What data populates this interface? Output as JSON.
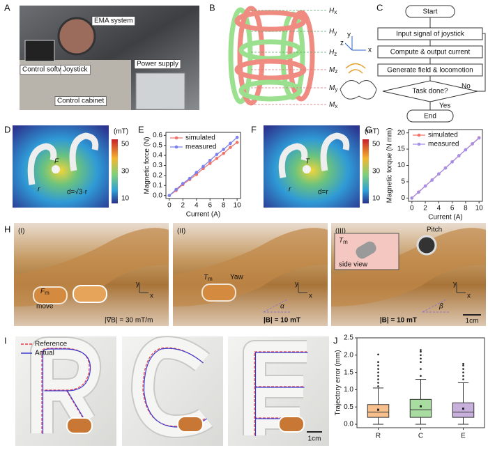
{
  "panel_labels": [
    "A",
    "B",
    "C",
    "D",
    "E",
    "F",
    "G",
    "H",
    "I",
    "J"
  ],
  "panel_a": {
    "labels": [
      "EMA system",
      "Control software",
      "Joystick",
      "Power supply",
      "Control cabinet"
    ]
  },
  "panel_b": {
    "labels": [
      {
        "symbol": "H",
        "subscript": "x"
      },
      {
        "symbol": "H",
        "subscript": "y"
      },
      {
        "symbol": "H",
        "subscript": "z"
      },
      {
        "symbol": "M",
        "subscript": "z"
      },
      {
        "symbol": "M",
        "subscript": "y"
      },
      {
        "symbol": "M",
        "subscript": "x"
      }
    ],
    "axes": [
      "x",
      "y",
      "z"
    ]
  },
  "panel_c": {
    "steps": [
      "Start",
      "Input signal of joystick",
      "Compute & output current",
      "Generate field & locomotion",
      "Task done?",
      "End"
    ],
    "yes": "Yes",
    "no": "No"
  },
  "panel_d": {
    "unit": "(mT)",
    "colorbar_ticks": [
      50,
      30,
      10
    ],
    "force": "F",
    "radius": "r",
    "distance": "d=√3·r"
  },
  "panel_f": {
    "unit": "(mT)",
    "colorbar_ticks": [
      50,
      30,
      10
    ],
    "torque": "T",
    "radius": "r",
    "distance": "d=r"
  },
  "panel_h": {
    "stages": [
      "(I)",
      "(II)",
      "(III)"
    ],
    "force": {
      "symbol": "F",
      "subscript": "m"
    },
    "move": "move",
    "gradient": "|∇B| = 30 mT/m",
    "torque": {
      "symbol": "T",
      "subscript": "m"
    },
    "yaw": "Yaw",
    "field_2": "|B| = 10 mT",
    "alpha": "α",
    "pitch": "Pitch",
    "side_view": "side view",
    "field_3": "|B| = 10 mT",
    "beta": "β",
    "axes": [
      "y",
      "x"
    ],
    "scale": "1cm"
  },
  "panel_i": {
    "legend": [
      "Reference",
      "Actual"
    ],
    "scale": "1cm"
  },
  "chart_data": [
    {
      "type": "line",
      "xlabel": "Current (A)",
      "ylabel": "Magnetic force (N)",
      "x": [
        0,
        1,
        2,
        3,
        4,
        5,
        6,
        7,
        8,
        9,
        10
      ],
      "series": [
        {
          "name": "simulated",
          "color": "#f0746a",
          "values": [
            0,
            0.05,
            0.11,
            0.16,
            0.21,
            0.27,
            0.32,
            0.37,
            0.42,
            0.48,
            0.53
          ]
        },
        {
          "name": "measured",
          "color": "#7b80ee",
          "values": [
            0,
            0.06,
            0.12,
            0.17,
            0.23,
            0.29,
            0.35,
            0.41,
            0.46,
            0.52,
            0.58
          ]
        }
      ],
      "xlim": [
        -0.5,
        10.5
      ],
      "xticks": [
        0,
        2,
        4,
        6,
        8,
        10
      ],
      "ylim": [
        -0.03,
        0.63
      ],
      "yticks": [
        {
          "value": 0,
          "label": "0.0"
        },
        {
          "value": 0.1,
          "label": "0.1"
        },
        {
          "value": 0.2,
          "label": "0.2"
        },
        {
          "value": 0.3,
          "label": "0.3"
        },
        {
          "value": 0.4,
          "label": "0.4"
        },
        {
          "value": 0.5,
          "label": "0.5"
        },
        {
          "value": 0.6,
          "label": "0.6"
        }
      ],
      "legend": "upper-left"
    },
    {
      "type": "line",
      "xlabel": "Current (A)",
      "ylabel": "Magnetic torque (N mm)",
      "x": [
        0,
        1,
        2,
        3,
        4,
        5,
        6,
        7,
        8,
        9,
        10
      ],
      "series": [
        {
          "name": "simulated",
          "color": "#f0746a",
          "values": [
            0,
            1.85,
            3.7,
            5.55,
            7.4,
            9.25,
            11.1,
            12.95,
            14.8,
            16.65,
            18.5
          ]
        },
        {
          "name": "measured",
          "color": "#a48ee6",
          "values": [
            0,
            1.8,
            3.7,
            5.5,
            7.4,
            9.2,
            11.1,
            13.0,
            14.8,
            16.6,
            18.4
          ]
        }
      ],
      "xlim": [
        -0.5,
        10.5
      ],
      "xticks": [
        0,
        2,
        4,
        6,
        8,
        10
      ],
      "ylim": [
        -1,
        21
      ],
      "yticks": [
        0,
        5,
        10,
        15,
        20
      ],
      "legend": "upper-left"
    },
    {
      "type": "box",
      "ylabel": "Trajectory error (mm)",
      "categories": [
        "R",
        "C",
        "E"
      ],
      "colors": [
        "#f6bf8c",
        "#a9dca1",
        "#c8b0dd"
      ],
      "boxes": [
        {
          "min": 0.0,
          "q1": 0.2,
          "median": 0.35,
          "q3": 0.57,
          "max": 1.05,
          "mean": 0.42,
          "outliers": [
            1.1,
            1.2,
            1.3,
            1.4,
            1.5,
            1.6,
            1.7,
            1.8,
            2.02
          ]
        },
        {
          "min": 0.0,
          "q1": 0.2,
          "median": 0.42,
          "q3": 0.72,
          "max": 1.3,
          "mean": 0.52,
          "outliers": [
            1.4,
            1.6,
            1.8,
            1.9,
            2.0,
            2.1,
            2.15
          ]
        },
        {
          "min": 0.0,
          "q1": 0.2,
          "median": 0.35,
          "q3": 0.62,
          "max": 1.2,
          "mean": 0.45,
          "outliers": [
            1.3,
            1.4,
            1.5,
            1.6,
            1.7,
            1.75
          ]
        }
      ],
      "ylim": [
        -0.1,
        2.5
      ],
      "yticks": [
        {
          "value": 0,
          "label": "0.0"
        },
        {
          "value": 0.5,
          "label": "0.5"
        },
        {
          "value": 1,
          "label": "1.0"
        },
        {
          "value": 1.5,
          "label": "1.5"
        },
        {
          "value": 2,
          "label": "2.0"
        },
        {
          "value": 2.5,
          "label": "2.5"
        }
      ]
    }
  ]
}
